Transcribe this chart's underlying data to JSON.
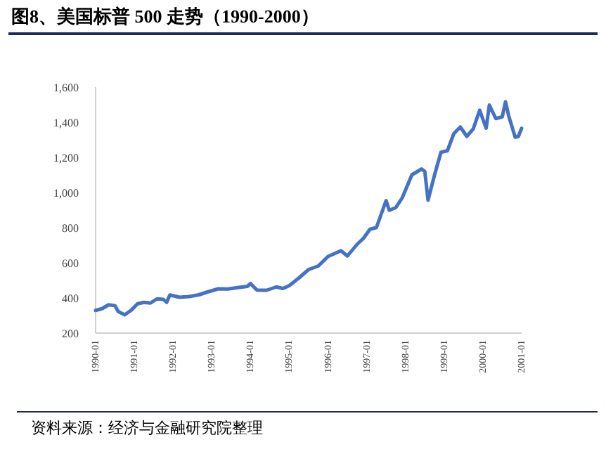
{
  "chart_data": {
    "type": "line",
    "title": "图8、美国标普 500 走势（1990-2000）",
    "annotations": [
      "资料来源：经济与金融研究院整理"
    ],
    "x": [
      "1990-01",
      "1990-03",
      "1990-05",
      "1990-07",
      "1990-08",
      "1990-10",
      "1990-12",
      "1991-02",
      "1991-04",
      "1991-06",
      "1991-08",
      "1991-10",
      "1991-11",
      "1991-12",
      "1992-03",
      "1992-06",
      "1992-09",
      "1992-12",
      "1993-03",
      "1993-06",
      "1993-09",
      "1993-12",
      "1994-01",
      "1994-03",
      "1994-06",
      "1994-09",
      "1994-11",
      "1995-01",
      "1995-04",
      "1995-07",
      "1995-10",
      "1996-01",
      "1996-05",
      "1996-07",
      "1996-10",
      "1996-12",
      "1997-02",
      "1997-04",
      "1997-07",
      "1997-08",
      "1997-10",
      "1997-12",
      "1998-03",
      "1998-06",
      "1998-07",
      "1998-08",
      "1998-10",
      "1998-12",
      "1999-02",
      "1999-04",
      "1999-06",
      "1999-08",
      "1999-10",
      "1999-12",
      "2000-02",
      "2000-03",
      "2000-05",
      "2000-07",
      "2000-08",
      "2000-09",
      "2000-11",
      "2000-12",
      "2001-01"
    ],
    "series": [
      {
        "color": "#4472c4",
        "values": [
          329,
          339,
          361,
          356,
          323,
          304,
          330,
          367,
          375,
          371,
          395,
          392,
          375,
          417,
          404,
          408,
          418,
          436,
          452,
          451,
          459,
          466,
          482,
          445,
          444,
          463,
          454,
          470,
          514,
          562,
          582,
          636,
          669,
          639,
          705,
          740,
          791,
          801,
          954,
          899,
          914,
          970,
          1101,
          1134,
          1120,
          957,
          1099,
          1229,
          1238,
          1336,
          1373,
          1320,
          1362,
          1469,
          1366,
          1498,
          1421,
          1431,
          1517,
          1436,
          1315,
          1320,
          1366
        ]
      }
    ],
    "xlim": [
      "1990-01",
      "2001-01"
    ],
    "xticks": [
      "1990-01",
      "1991-01",
      "1992-01",
      "1993-01",
      "1994-01",
      "1995-01",
      "1996-01",
      "1997-01",
      "1998-01",
      "1999-01",
      "2000-01",
      "2001-01"
    ],
    "ylim": [
      200,
      1600
    ],
    "yticks": [
      200,
      400,
      600,
      800,
      {
        "value": 1000,
        "label": "1,000"
      },
      {
        "value": 1200,
        "label": "1,200"
      },
      {
        "value": 1400,
        "label": "1,400"
      },
      {
        "value": 1600,
        "label": "1,600"
      }
    ],
    "grid": false,
    "marker": "none",
    "line_style": "solid"
  }
}
